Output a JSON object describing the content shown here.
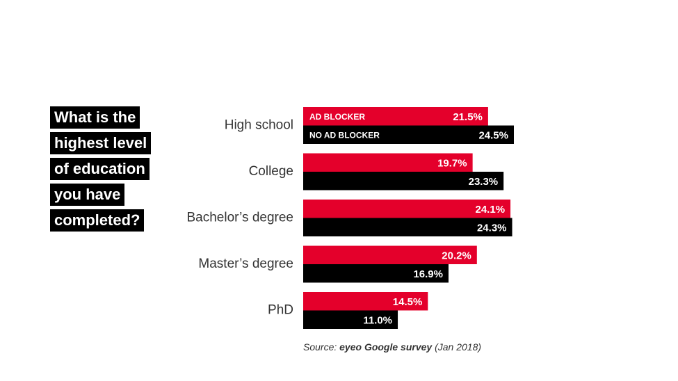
{
  "title_lines": [
    "What is the",
    "highest level",
    "of education",
    "you have",
    "completed?"
  ],
  "chart_data": {
    "type": "bar",
    "orientation": "horizontal",
    "categories": [
      "High school",
      "College",
      "Bachelor’s degree",
      "Master’s degree",
      "PhD"
    ],
    "series": [
      {
        "name": "AD BLOCKER",
        "color": "#e4002b",
        "values": [
          21.5,
          19.7,
          24.1,
          20.2,
          14.5
        ]
      },
      {
        "name": "NO AD BLOCKER",
        "color": "#000000",
        "values": [
          24.5,
          23.3,
          24.3,
          16.9,
          11.0
        ]
      }
    ],
    "value_suffix": "%",
    "xlim": [
      0,
      24.5
    ],
    "legend_placement": "inside-first-bars",
    "grid": false
  },
  "source": {
    "prefix": "Source: ",
    "bold": "eyeo Google survey",
    "suffix": " (Jan 2018)"
  }
}
